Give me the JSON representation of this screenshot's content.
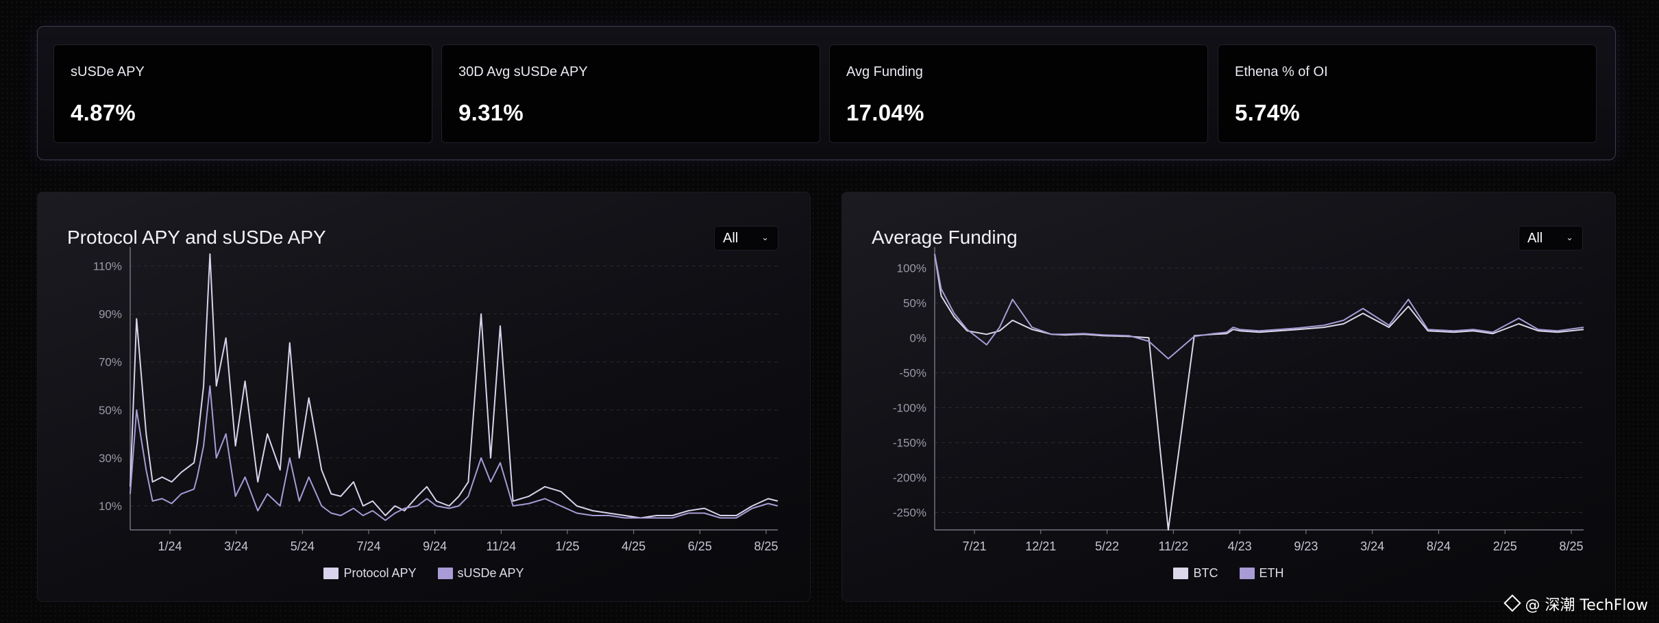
{
  "stats": [
    {
      "label": "sUSDe APY",
      "value": "4.87%"
    },
    {
      "label": "30D Avg sUSDe APY",
      "value": "9.31%"
    },
    {
      "label": "Avg Funding",
      "value": "17.04%"
    },
    {
      "label": "Ethena % of OI",
      "value": "5.74%"
    }
  ],
  "dropdowns": {
    "apy": "All",
    "funding": "All"
  },
  "watermark": "@ 深潮 TechFlow",
  "colors": {
    "protocol": "#d9d3ec",
    "susde": "#a99bd6",
    "btc": "#dcd8ea",
    "eth": "#a99bd6"
  },
  "chart_data": [
    {
      "type": "line",
      "title": "Protocol APY and sUSDe APY",
      "xlabel": "",
      "ylabel": "",
      "x_ticks": [
        "1/24",
        "3/24",
        "5/24",
        "7/24",
        "9/24",
        "11/24",
        "1/25",
        "4/25",
        "6/25",
        "8/25"
      ],
      "y_ticks": [
        "10%",
        "30%",
        "50%",
        "70%",
        "90%",
        "110%"
      ],
      "ylim": [
        0,
        115
      ],
      "x": [
        0,
        0.2,
        0.5,
        0.7,
        1,
        1.3,
        1.6,
        2,
        2.1,
        2.3,
        2.5,
        2.7,
        3,
        3.3,
        3.6,
        4,
        4.3,
        4.7,
        5,
        5.3,
        5.6,
        6,
        6.3,
        6.6,
        7,
        7.3,
        7.6,
        8,
        8.3,
        8.6,
        9,
        9.3,
        9.6,
        10,
        10.3,
        10.6,
        11,
        11.3,
        11.6,
        12,
        12.5,
        13,
        13.5,
        14,
        14.5,
        15,
        15.5,
        16,
        16.5,
        17,
        17.5,
        18,
        18.5,
        19,
        19.5,
        20,
        20.3
      ],
      "series": [
        {
          "name": "Protocol APY",
          "values": [
            18,
            88,
            40,
            20,
            22,
            20,
            24,
            28,
            36,
            60,
            116,
            60,
            80,
            35,
            62,
            20,
            40,
            25,
            78,
            30,
            55,
            25,
            15,
            14,
            20,
            10,
            12,
            6,
            10,
            8,
            14,
            18,
            12,
            10,
            14,
            20,
            90,
            30,
            85,
            12,
            14,
            18,
            16,
            10,
            8,
            7,
            6,
            5,
            6,
            6,
            8,
            9,
            6,
            6,
            10,
            13,
            12
          ]
        },
        {
          "name": "sUSDe APY",
          "values": [
            15,
            50,
            25,
            12,
            13,
            11,
            15,
            17,
            22,
            35,
            60,
            30,
            40,
            14,
            22,
            8,
            15,
            10,
            30,
            12,
            22,
            10,
            7,
            6,
            9,
            6,
            8,
            4,
            7,
            9,
            10,
            13,
            10,
            9,
            10,
            14,
            30,
            20,
            28,
            10,
            11,
            13,
            10,
            7,
            6,
            6,
            5,
            5,
            5,
            5,
            7,
            7,
            5,
            5,
            9,
            11,
            10
          ]
        }
      ]
    },
    {
      "type": "line",
      "title": "Average Funding",
      "xlabel": "",
      "ylabel": "",
      "x_ticks": [
        "7/21",
        "12/21",
        "5/22",
        "11/22",
        "4/23",
        "9/23",
        "3/24",
        "8/24",
        "2/25",
        "8/25"
      ],
      "y_ticks": [
        "100%",
        "50%",
        "0%",
        "-50%",
        "-100%",
        "-150%",
        "-200%",
        "-250%"
      ],
      "ylim": [
        -275,
        120
      ],
      "x": [
        0,
        0.1,
        0.3,
        0.5,
        0.8,
        1,
        1.2,
        1.5,
        1.8,
        2,
        2.3,
        2.6,
        3,
        3.3,
        3.6,
        4,
        4.3,
        4.5,
        4.6,
        4.7,
        5,
        5.3,
        5.6,
        6,
        6.3,
        6.6,
        7,
        7.3,
        7.6,
        8,
        8.3,
        8.6,
        9,
        9.3,
        9.6,
        10
      ],
      "series": [
        {
          "name": "BTC",
          "values": [
            140,
            60,
            30,
            10,
            5,
            10,
            25,
            12,
            5,
            4,
            5,
            3,
            2,
            0,
            -275,
            3,
            5,
            6,
            12,
            10,
            8,
            10,
            12,
            15,
            20,
            35,
            15,
            45,
            10,
            8,
            10,
            6,
            20,
            10,
            8,
            12
          ]
        },
        {
          "name": "ETH",
          "values": [
            150,
            70,
            35,
            12,
            -10,
            15,
            55,
            15,
            5,
            5,
            6,
            4,
            3,
            -5,
            -30,
            2,
            6,
            8,
            15,
            12,
            10,
            12,
            14,
            18,
            25,
            42,
            18,
            55,
            12,
            10,
            12,
            8,
            28,
            12,
            10,
            15
          ]
        }
      ]
    }
  ]
}
